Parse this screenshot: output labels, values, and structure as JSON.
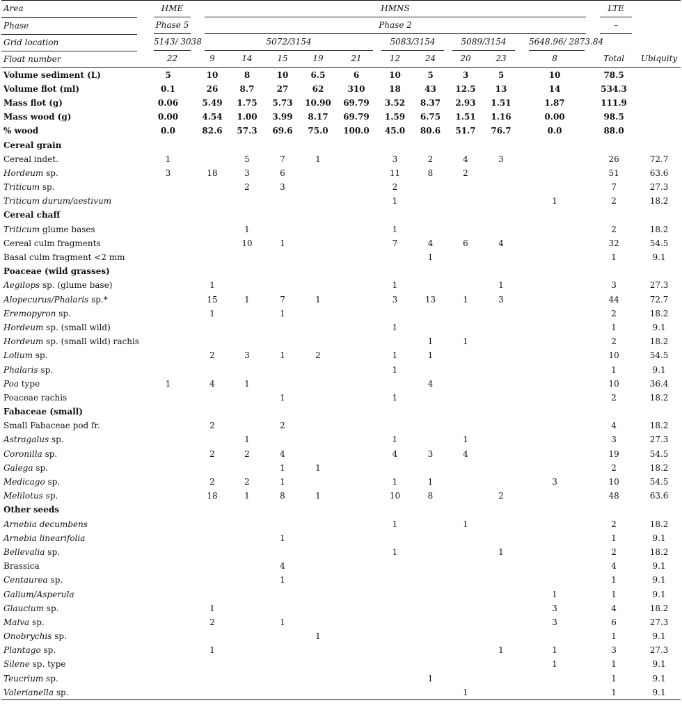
{
  "header": {
    "area_label": "Area",
    "area_hme": "HME",
    "area_hmns": "HMNS",
    "area_lte": "LTE",
    "phase_label": "Phase",
    "phase_hme": "Phase 5",
    "phase_hmns": "Phase 2",
    "phase_lte": "–",
    "grid_label": "Grid location",
    "grid_1": "5143/ 3038",
    "grid_2": "5072/3154",
    "grid_3": "5083/3154",
    "grid_4": "5089/3154",
    "grid_5": "5648.96/ 2873.84",
    "float_label": "Float number",
    "floats": [
      "22",
      "9",
      "14",
      "15",
      "19",
      "21",
      "12",
      "24",
      "20",
      "23",
      "8"
    ],
    "total_label": "Total",
    "ubiquity_label": "Ubiquity"
  },
  "rows": [
    {
      "type": "bold",
      "label": [
        [
          "Volume sediment (L)",
          false
        ]
      ],
      "values": [
        "5",
        "10",
        "8",
        "10",
        "6.5",
        "6",
        "10",
        "5",
        "3",
        "5",
        "10"
      ],
      "total": "78.5",
      "ubiquity": ""
    },
    {
      "type": "bold",
      "label": [
        [
          "Volume flot (ml)",
          false
        ]
      ],
      "values": [
        "0.1",
        "26",
        "8.7",
        "27",
        "62",
        "310",
        "18",
        "43",
        "12.5",
        "13",
        "14"
      ],
      "total": "534.3",
      "ubiquity": ""
    },
    {
      "type": "bold",
      "label": [
        [
          "Mass flot (g)",
          false
        ]
      ],
      "values": [
        "0.06",
        "5.49",
        "1.75",
        "5.73",
        "10.90",
        "69.79",
        "3.52",
        "8.37",
        "2.93",
        "1.51",
        "1.87"
      ],
      "total": "111.9",
      "ubiquity": ""
    },
    {
      "type": "bold",
      "label": [
        [
          "Mass wood (g)",
          false
        ]
      ],
      "values": [
        "0.00",
        "4.54",
        "1.00",
        "3.99",
        "8.17",
        "69.79",
        "1.59",
        "6.75",
        "1.51",
        "1.16",
        "0.00"
      ],
      "total": "98.5",
      "ubiquity": ""
    },
    {
      "type": "bold",
      "label": [
        [
          "% wood",
          false
        ]
      ],
      "values": [
        "0.0",
        "82.6",
        "57.3",
        "69.6",
        "75.0",
        "100.0",
        "45.0",
        "80.6",
        "51.7",
        "76.7",
        "0.0"
      ],
      "total": "88.0",
      "ubiquity": ""
    },
    {
      "type": "section",
      "label": [
        [
          "Cereal grain",
          false
        ]
      ],
      "values": [
        "",
        "",
        "",
        "",
        "",
        "",
        "",
        "",
        "",
        "",
        ""
      ],
      "total": "",
      "ubiquity": ""
    },
    {
      "type": "data",
      "label": [
        [
          "Cereal indet.",
          false
        ]
      ],
      "values": [
        "1",
        "",
        "5",
        "7",
        "1",
        "",
        "3",
        "2",
        "4",
        "3",
        ""
      ],
      "total": "26",
      "ubiquity": "72.7"
    },
    {
      "type": "data",
      "label": [
        [
          "Hordeum",
          true
        ],
        [
          " sp.",
          false
        ]
      ],
      "values": [
        "3",
        "18",
        "3",
        "6",
        "",
        "",
        "11",
        "8",
        "2",
        "",
        ""
      ],
      "total": "51",
      "ubiquity": "63.6"
    },
    {
      "type": "data",
      "label": [
        [
          "Triticum",
          true
        ],
        [
          " sp.",
          false
        ]
      ],
      "values": [
        "",
        "",
        "2",
        "3",
        "",
        "",
        "2",
        "",
        "",
        "",
        ""
      ],
      "total": "7",
      "ubiquity": "27.3"
    },
    {
      "type": "data",
      "label": [
        [
          "Triticum durum/aestivum",
          true
        ]
      ],
      "values": [
        "",
        "",
        "",
        "",
        "",
        "",
        "1",
        "",
        "",
        "",
        "1"
      ],
      "total": "2",
      "ubiquity": "18.2"
    },
    {
      "type": "section",
      "label": [
        [
          "Cereal chaff",
          false
        ]
      ],
      "values": [
        "",
        "",
        "",
        "",
        "",
        "",
        "",
        "",
        "",
        "",
        ""
      ],
      "total": "",
      "ubiquity": ""
    },
    {
      "type": "data",
      "label": [
        [
          "Triticum",
          true
        ],
        [
          " glume bases",
          false
        ]
      ],
      "values": [
        "",
        "",
        "1",
        "",
        "",
        "",
        "1",
        "",
        "",
        "",
        ""
      ],
      "total": "2",
      "ubiquity": "18.2"
    },
    {
      "type": "data",
      "label": [
        [
          "Cereal culm fragments",
          false
        ]
      ],
      "values": [
        "",
        "",
        "10",
        "1",
        "",
        "",
        "7",
        "4",
        "6",
        "4",
        ""
      ],
      "total": "32",
      "ubiquity": "54.5"
    },
    {
      "type": "data",
      "label": [
        [
          "Basal culm fragment <2 mm",
          false
        ]
      ],
      "values": [
        "",
        "",
        "",
        "",
        "",
        "",
        "",
        "1",
        "",
        "",
        ""
      ],
      "total": "1",
      "ubiquity": "9.1"
    },
    {
      "type": "section",
      "label": [
        [
          "Poaceae (wild grasses)",
          false
        ]
      ],
      "values": [
        "",
        "",
        "",
        "",
        "",
        "",
        "",
        "",
        "",
        "",
        ""
      ],
      "total": "",
      "ubiquity": ""
    },
    {
      "type": "data",
      "label": [
        [
          "Aegilops",
          true
        ],
        [
          " sp. (glume base)",
          false
        ]
      ],
      "values": [
        "",
        "1",
        "",
        "",
        "",
        "",
        "1",
        "",
        "",
        "1",
        ""
      ],
      "total": "3",
      "ubiquity": "27.3"
    },
    {
      "type": "data",
      "label": [
        [
          "Alopecurus/Phalaris",
          true
        ],
        [
          " sp.*",
          false
        ]
      ],
      "values": [
        "",
        "15",
        "1",
        "7",
        "1",
        "",
        "3",
        "13",
        "1",
        "3",
        ""
      ],
      "total": "44",
      "ubiquity": "72.7"
    },
    {
      "type": "data",
      "label": [
        [
          "Eremopyron",
          true
        ],
        [
          " sp.",
          false
        ]
      ],
      "values": [
        "",
        "1",
        "",
        "1",
        "",
        "",
        "",
        "",
        "",
        "",
        ""
      ],
      "total": "2",
      "ubiquity": "18.2"
    },
    {
      "type": "data",
      "label": [
        [
          "Hordeum",
          true
        ],
        [
          " sp. (small wild)",
          false
        ]
      ],
      "values": [
        "",
        "",
        "",
        "",
        "",
        "",
        "1",
        "",
        "",
        "",
        ""
      ],
      "total": "1",
      "ubiquity": "9.1"
    },
    {
      "type": "data",
      "label": [
        [
          "Hordeum",
          true
        ],
        [
          " sp. (small wild) rachis",
          false
        ]
      ],
      "values": [
        "",
        "",
        "",
        "",
        "",
        "",
        "",
        "1",
        "1",
        "",
        ""
      ],
      "total": "2",
      "ubiquity": "18.2"
    },
    {
      "type": "data",
      "label": [
        [
          "Lolium",
          true
        ],
        [
          " sp.",
          false
        ]
      ],
      "values": [
        "",
        "2",
        "3",
        "1",
        "2",
        "",
        "1",
        "1",
        "",
        "",
        ""
      ],
      "total": "10",
      "ubiquity": "54.5"
    },
    {
      "type": "data",
      "label": [
        [
          "Phalaris",
          true
        ],
        [
          " sp.",
          false
        ]
      ],
      "values": [
        "",
        "",
        "",
        "",
        "",
        "",
        "1",
        "",
        "",
        "",
        ""
      ],
      "total": "1",
      "ubiquity": "9.1"
    },
    {
      "type": "data",
      "label": [
        [
          "Poa",
          true
        ],
        [
          " type",
          false
        ]
      ],
      "values": [
        "1",
        "4",
        "1",
        "",
        "",
        "",
        "",
        "4",
        "",
        "",
        ""
      ],
      "total": "10",
      "ubiquity": "36.4"
    },
    {
      "type": "data",
      "label": [
        [
          "Poaceae rachis",
          false
        ]
      ],
      "values": [
        "",
        "",
        "",
        "1",
        "",
        "",
        "1",
        "",
        "",
        "",
        ""
      ],
      "total": "2",
      "ubiquity": "18.2"
    },
    {
      "type": "section",
      "label": [
        [
          "Fabaceae (small)",
          false
        ]
      ],
      "values": [
        "",
        "",
        "",
        "",
        "",
        "",
        "",
        "",
        "",
        "",
        ""
      ],
      "total": "",
      "ubiquity": ""
    },
    {
      "type": "data",
      "label": [
        [
          "Small Fabaceae pod fr.",
          false
        ]
      ],
      "values": [
        "",
        "2",
        "",
        "2",
        "",
        "",
        "",
        "",
        "",
        "",
        ""
      ],
      "total": "4",
      "ubiquity": "18.2"
    },
    {
      "type": "data",
      "label": [
        [
          "Astragalus",
          true
        ],
        [
          " sp.",
          false
        ]
      ],
      "values": [
        "",
        "",
        "1",
        "",
        "",
        "",
        "1",
        "",
        "1",
        "",
        ""
      ],
      "total": "3",
      "ubiquity": "27.3"
    },
    {
      "type": "data",
      "label": [
        [
          "Coronilla",
          true
        ],
        [
          " sp.",
          false
        ]
      ],
      "values": [
        "",
        "2",
        "2",
        "4",
        "",
        "",
        "4",
        "3",
        "4",
        "",
        ""
      ],
      "total": "19",
      "ubiquity": "54.5"
    },
    {
      "type": "data",
      "label": [
        [
          "Galega",
          true
        ],
        [
          " sp.",
          false
        ]
      ],
      "values": [
        "",
        "",
        "",
        "1",
        "1",
        "",
        "",
        "",
        "",
        "",
        ""
      ],
      "total": "2",
      "ubiquity": "18.2"
    },
    {
      "type": "data",
      "label": [
        [
          "Medicago",
          true
        ],
        [
          " sp.",
          false
        ]
      ],
      "values": [
        "",
        "2",
        "2",
        "1",
        "",
        "",
        "1",
        "1",
        "",
        "",
        "3"
      ],
      "total": "10",
      "ubiquity": "54.5"
    },
    {
      "type": "data",
      "label": [
        [
          "Melilotus",
          true
        ],
        [
          " sp.",
          false
        ]
      ],
      "values": [
        "",
        "18",
        "1",
        "8",
        "1",
        "",
        "10",
        "8",
        "",
        "2",
        ""
      ],
      "total": "48",
      "ubiquity": "63.6"
    },
    {
      "type": "section",
      "label": [
        [
          "Other seeds",
          false
        ]
      ],
      "values": [
        "",
        "",
        "",
        "",
        "",
        "",
        "",
        "",
        "",
        "",
        ""
      ],
      "total": "",
      "ubiquity": ""
    },
    {
      "type": "data",
      "label": [
        [
          "Arnebia decumbens",
          true
        ]
      ],
      "values": [
        "",
        "",
        "",
        "",
        "",
        "",
        "1",
        "",
        "1",
        "",
        ""
      ],
      "total": "2",
      "ubiquity": "18.2"
    },
    {
      "type": "data",
      "label": [
        [
          "Arnebia linearifolia",
          true
        ]
      ],
      "values": [
        "",
        "",
        "",
        "1",
        "",
        "",
        "",
        "",
        "",
        "",
        ""
      ],
      "total": "1",
      "ubiquity": "9.1"
    },
    {
      "type": "data",
      "label": [
        [
          "Bellevalia",
          true
        ],
        [
          " sp.",
          false
        ]
      ],
      "values": [
        "",
        "",
        "",
        "",
        "",
        "",
        "1",
        "",
        "",
        "1",
        ""
      ],
      "total": "2",
      "ubiquity": "18.2"
    },
    {
      "type": "data",
      "label": [
        [
          "Brassica",
          false
        ]
      ],
      "values": [
        "",
        "",
        "",
        "4",
        "",
        "",
        "",
        "",
        "",
        "",
        ""
      ],
      "total": "4",
      "ubiquity": "9.1"
    },
    {
      "type": "data",
      "label": [
        [
          "Centaurea",
          true
        ],
        [
          " sp.",
          false
        ]
      ],
      "values": [
        "",
        "",
        "",
        "1",
        "",
        "",
        "",
        "",
        "",
        "",
        ""
      ],
      "total": "1",
      "ubiquity": "9.1"
    },
    {
      "type": "data",
      "label": [
        [
          "Galium/Asperula",
          true
        ]
      ],
      "values": [
        "",
        "",
        "",
        "",
        "",
        "",
        "",
        "",
        "",
        "",
        "1"
      ],
      "total": "1",
      "ubiquity": "9.1"
    },
    {
      "type": "data",
      "label": [
        [
          "Glaucium",
          true
        ],
        [
          " sp.",
          false
        ]
      ],
      "values": [
        "",
        "1",
        "",
        "",
        "",
        "",
        "",
        "",
        "",
        "",
        "3"
      ],
      "total": "4",
      "ubiquity": "18.2"
    },
    {
      "type": "data",
      "label": [
        [
          "Malva",
          true
        ],
        [
          " sp.",
          false
        ]
      ],
      "values": [
        "",
        "2",
        "",
        "1",
        "",
        "",
        "",
        "",
        "",
        "",
        "3"
      ],
      "total": "6",
      "ubiquity": "27.3"
    },
    {
      "type": "data",
      "label": [
        [
          "Onobrychis",
          true
        ],
        [
          " sp.",
          false
        ]
      ],
      "values": [
        "",
        "",
        "",
        "",
        "1",
        "",
        "",
        "",
        "",
        "",
        ""
      ],
      "total": "1",
      "ubiquity": "9.1"
    },
    {
      "type": "data",
      "label": [
        [
          "Plantago",
          true
        ],
        [
          " sp.",
          false
        ]
      ],
      "values": [
        "",
        "1",
        "",
        "",
        "",
        "",
        "",
        "",
        "",
        "1",
        "1"
      ],
      "total": "3",
      "ubiquity": "27.3"
    },
    {
      "type": "data",
      "label": [
        [
          "Silene",
          true
        ],
        [
          " sp. type",
          false
        ]
      ],
      "values": [
        "",
        "",
        "",
        "",
        "",
        "",
        "",
        "",
        "",
        "",
        "1"
      ],
      "total": "1",
      "ubiquity": "9.1"
    },
    {
      "type": "data",
      "label": [
        [
          "Teucrium",
          true
        ],
        [
          " sp.",
          false
        ]
      ],
      "values": [
        "",
        "",
        "",
        "",
        "",
        "",
        "",
        "1",
        "",
        "",
        ""
      ],
      "total": "1",
      "ubiquity": "9.1"
    },
    {
      "type": "data",
      "label": [
        [
          "Valerianella",
          true
        ],
        [
          " sp.",
          false
        ]
      ],
      "values": [
        "",
        "",
        "",
        "",
        "",
        "",
        "",
        "",
        "1",
        "",
        ""
      ],
      "total": "1",
      "ubiquity": "9.1"
    }
  ]
}
